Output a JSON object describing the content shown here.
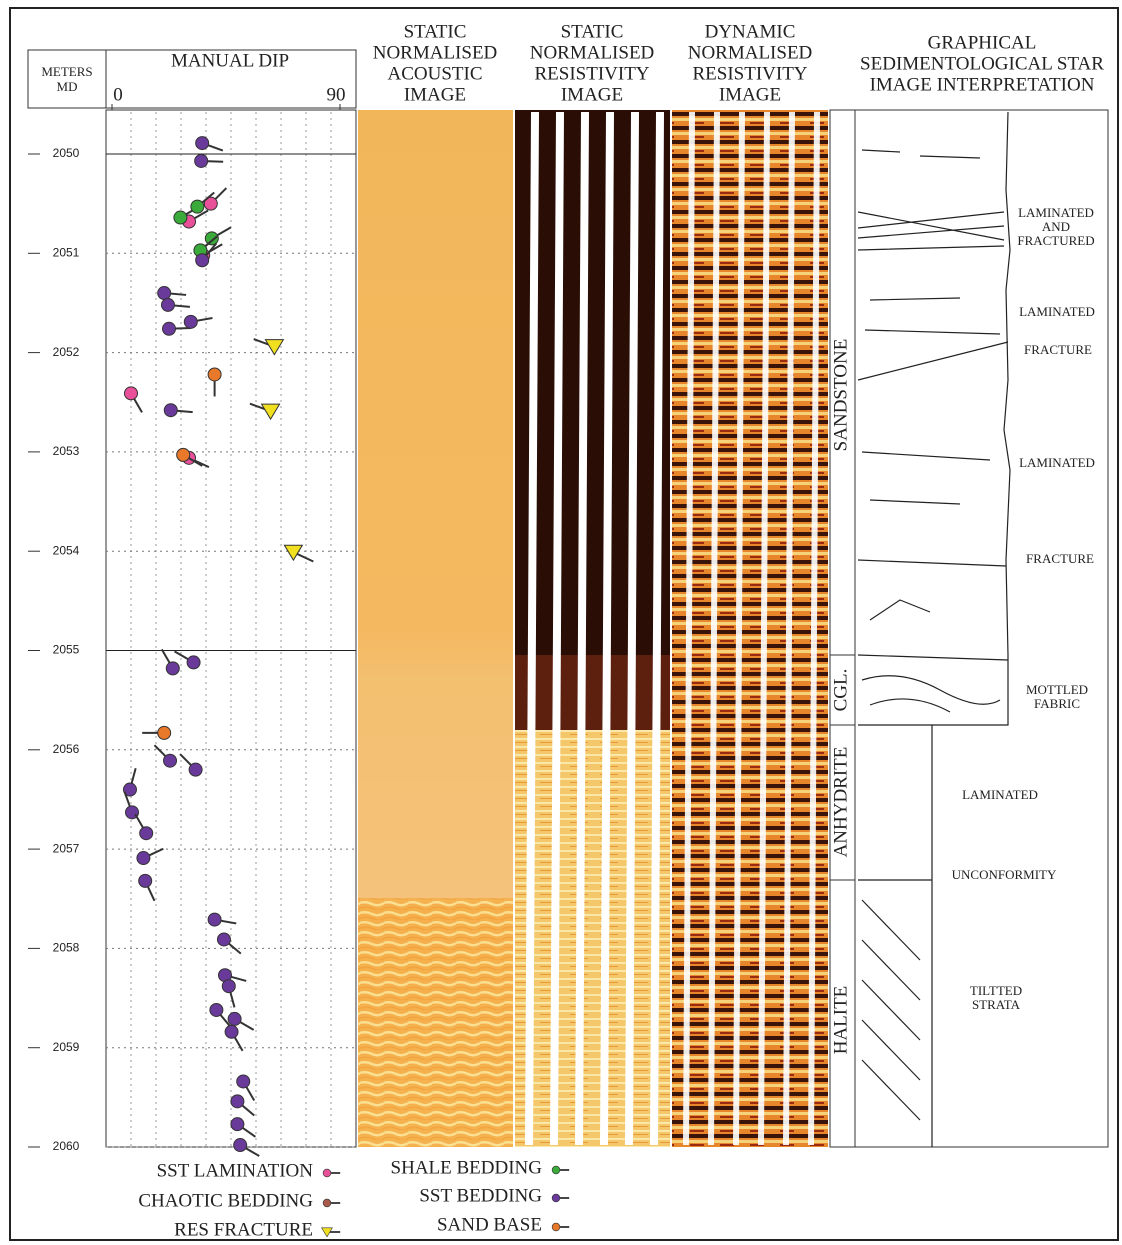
{
  "chart_data": {
    "type": "tadpole",
    "depth_label": [
      "METERS",
      "MD"
    ],
    "dip_title": "MANUAL DIP",
    "xlim": [
      0,
      90
    ],
    "xticks": [
      0,
      90
    ],
    "ylim": [
      2050,
      2060
    ],
    "yticks": [
      2050,
      2051,
      2052,
      2053,
      2054,
      2055,
      2056,
      2057,
      2058,
      2059,
      2060
    ],
    "track_titles": [
      [
        "STATIC",
        "NORMALISED",
        "ACOUSTIC",
        "IMAGE"
      ],
      [
        "STATIC",
        "NORMALISED",
        "RESISTIVITY",
        "IMAGE"
      ],
      [
        "DYNAMIC",
        "NORMALISED",
        "RESISTIVITY",
        "IMAGE"
      ],
      [
        "GRAPHICAL",
        "SEDIMENTOLOGICAL STAR",
        "IMAGE INTERPRETATION"
      ]
    ],
    "lithology": [
      "SANDSTONE",
      "CGL.",
      "ANHYDRITE",
      "HALITE"
    ],
    "interpretation": [
      [
        "LAMINATED",
        "AND",
        "FRACTURED"
      ],
      [
        "LAMINATED"
      ],
      [
        "FRACTURE"
      ],
      [
        "LAMINATED"
      ],
      [
        "FRACTURE"
      ],
      [
        "MOTTLED",
        "FABRIC"
      ],
      [
        "LAMINATED"
      ],
      [
        "UNCONFORMITY"
      ],
      [
        "TILTTED",
        "STRATA"
      ]
    ],
    "series": [
      {
        "name": "SST LAMINATION",
        "color": "#e8509a",
        "marker": "circle",
        "points": [
          {
            "depth": 2052.41,
            "dip": 7.5,
            "azimuth": 150
          },
          {
            "depth": 2050.68,
            "dip": 30.4,
            "azimuth": 60
          },
          {
            "depth": 2050.5,
            "dip": 39,
            "azimuth": 45
          },
          {
            "depth": 2053.06,
            "dip": 30.4,
            "azimuth": 115
          },
          {
            "depth": 2051.02,
            "dip": 36,
            "azimuth": 60
          }
        ]
      },
      {
        "name": "CHAOTIC BEDDING",
        "color": "#a85a4a",
        "marker": "circle",
        "points": []
      },
      {
        "name": "RES FRACTURE",
        "color": "#f0e020",
        "marker": "triangle",
        "points": [
          {
            "depth": 2051.94,
            "dip": 64.1,
            "azimuth": 290
          },
          {
            "depth": 2052.59,
            "dip": 62.6,
            "azimuth": 290
          },
          {
            "depth": 2054.01,
            "dip": 71.6,
            "azimuth": 115
          }
        ]
      },
      {
        "name": "SHALE BEDDING",
        "color": "#3aaa3a",
        "marker": "circle",
        "points": [
          {
            "depth": 2050.64,
            "dip": 27,
            "azimuth": 60
          },
          {
            "depth": 2050.85,
            "dip": 39.4,
            "azimuth": 60
          },
          {
            "depth": 2050.97,
            "dip": 34.9,
            "azimuth": 50
          },
          {
            "depth": 2050.53,
            "dip": 33.7,
            "azimuth": 50
          }
        ]
      },
      {
        "name": "SST BEDDING",
        "color": "#6a3a9a",
        "marker": "circle",
        "points": [
          {
            "depth": 2049.89,
            "dip": 35.6,
            "azimuth": 110
          },
          {
            "depth": 2050.07,
            "dip": 35.2,
            "azimuth": 92
          },
          {
            "depth": 2051.07,
            "dip": 35.6,
            "azimuth": 40
          },
          {
            "depth": 2051.4,
            "dip": 20.6,
            "azimuth": 95
          },
          {
            "depth": 2051.52,
            "dip": 22.1,
            "azimuth": 95
          },
          {
            "depth": 2051.76,
            "dip": 22.5,
            "azimuth": 88
          },
          {
            "depth": 2051.69,
            "dip": 31.1,
            "azimuth": 80
          },
          {
            "depth": 2052.58,
            "dip": 23.2,
            "azimuth": 95
          },
          {
            "depth": 2055.18,
            "dip": 24,
            "azimuth": 330
          },
          {
            "depth": 2055.12,
            "dip": 32.2,
            "azimuth": 300
          },
          {
            "depth": 2056.11,
            "dip": 22.9,
            "azimuth": 315
          },
          {
            "depth": 2056.2,
            "dip": 33,
            "azimuth": 315
          },
          {
            "depth": 2056.4,
            "dip": 7.1,
            "azimuth": 15
          },
          {
            "depth": 2056.63,
            "dip": 7.9,
            "azimuth": 340
          },
          {
            "depth": 2056.84,
            "dip": 13.5,
            "azimuth": 330
          },
          {
            "depth": 2057.09,
            "dip": 12.4,
            "azimuth": 65
          },
          {
            "depth": 2057.32,
            "dip": 13.1,
            "azimuth": 155
          },
          {
            "depth": 2057.71,
            "dip": 40.5,
            "azimuth": 100
          },
          {
            "depth": 2057.91,
            "dip": 44.2,
            "azimuth": 130
          },
          {
            "depth": 2058.27,
            "dip": 44.6,
            "azimuth": 105
          },
          {
            "depth": 2058.38,
            "dip": 46.1,
            "azimuth": 165
          },
          {
            "depth": 2058.62,
            "dip": 41.2,
            "azimuth": 140
          },
          {
            "depth": 2058.71,
            "dip": 48.4,
            "azimuth": 120
          },
          {
            "depth": 2058.84,
            "dip": 47.2,
            "azimuth": 150
          },
          {
            "depth": 2059.34,
            "dip": 51.8,
            "azimuth": 150
          },
          {
            "depth": 2059.54,
            "dip": 49.5,
            "azimuth": 130
          },
          {
            "depth": 2059.77,
            "dip": 49.5,
            "azimuth": 125
          },
          {
            "depth": 2059.98,
            "dip": 50.6,
            "azimuth": 120
          }
        ]
      },
      {
        "name": "SAND BASE",
        "color": "#e8782a",
        "marker": "circle",
        "points": [
          {
            "depth": 2052.22,
            "dip": 40.5,
            "azimuth": 180
          },
          {
            "depth": 2053.03,
            "dip": 28.1,
            "azimuth": 120
          },
          {
            "depth": 2055.83,
            "dip": 20.6,
            "azimuth": 270
          }
        ]
      }
    ]
  }
}
